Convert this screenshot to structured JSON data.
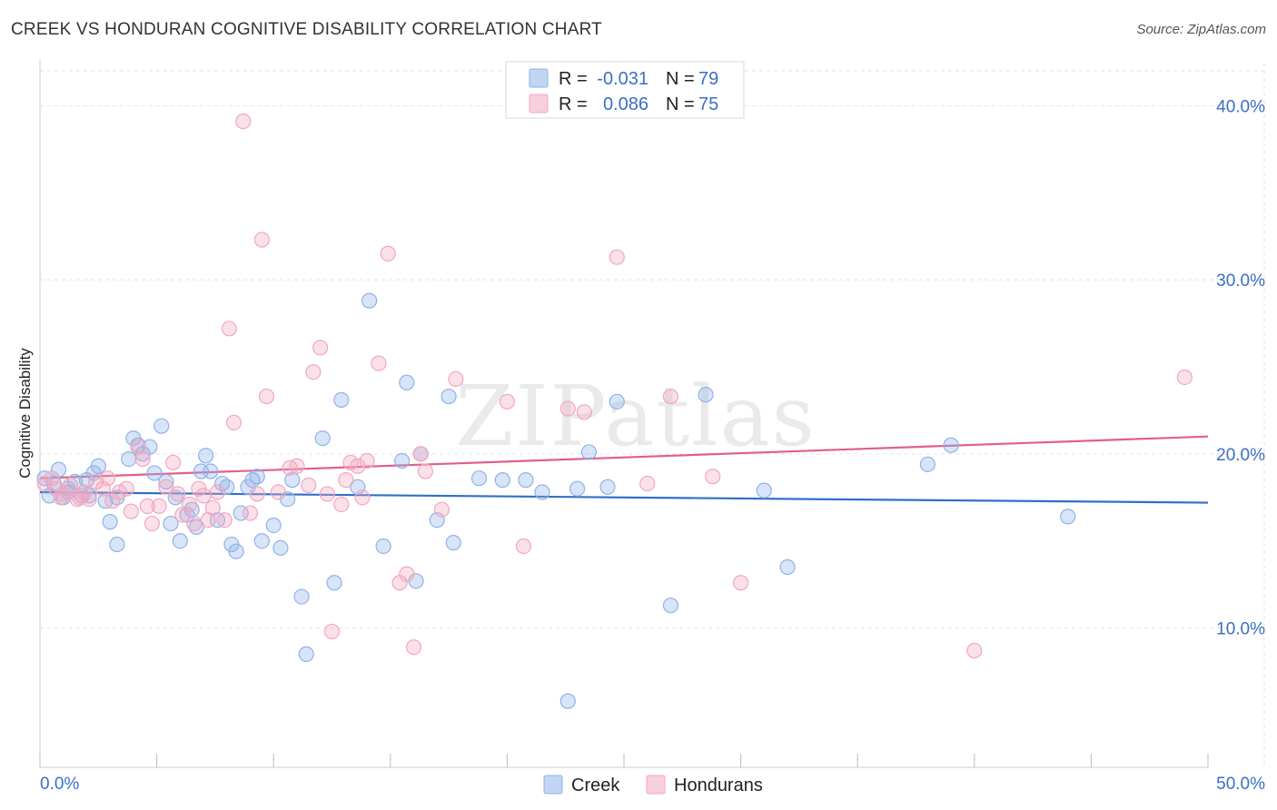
{
  "header": {
    "title": "CREEK VS HONDURAN COGNITIVE DISABILITY CORRELATION CHART",
    "source": "Source: ZipAtlas.com"
  },
  "watermark": "ZIPatlas",
  "chart_data": {
    "type": "scatter",
    "title": "CREEK VS HONDURAN COGNITIVE DISABILITY CORRELATION CHART",
    "ylabel": "Cognitive Disability",
    "xlabel": "",
    "xlim": [
      0,
      50
    ],
    "ylim": [
      2,
      42
    ],
    "x_tick_labels": [
      "0.0%",
      "50.0%"
    ],
    "y_ticks": [
      10,
      20,
      30,
      40
    ],
    "y_tick_labels": [
      "10.0%",
      "20.0%",
      "30.0%",
      "40.0%"
    ],
    "grid": true,
    "legend_position": "top-center",
    "series": [
      {
        "name": "Creek",
        "color": "#8fb3e8",
        "line_color": "#2f6fc8",
        "r_label": "R =",
        "r_value": "-0.031",
        "n_label": "N =",
        "n_value": "79",
        "trend": [
          [
            0,
            17.8
          ],
          [
            50,
            17.2
          ]
        ],
        "points": [
          [
            0.2,
            18.6
          ],
          [
            0.4,
            17.6
          ],
          [
            0.6,
            18.3
          ],
          [
            0.8,
            19.1
          ],
          [
            1.0,
            17.5
          ],
          [
            1.2,
            18.0
          ],
          [
            1.5,
            18.4
          ],
          [
            1.8,
            17.6
          ],
          [
            2.0,
            18.5
          ],
          [
            2.3,
            18.9
          ],
          [
            2.5,
            19.3
          ],
          [
            2.8,
            17.3
          ],
          [
            3.3,
            17.5
          ],
          [
            3.8,
            19.7
          ],
          [
            4.0,
            20.9
          ],
          [
            4.2,
            20.5
          ],
          [
            4.4,
            20.0
          ],
          [
            4.7,
            20.4
          ],
          [
            4.9,
            18.9
          ],
          [
            5.2,
            21.6
          ],
          [
            5.4,
            18.4
          ],
          [
            5.6,
            16.0
          ],
          [
            5.8,
            17.5
          ],
          [
            6.0,
            15.0
          ],
          [
            6.3,
            16.5
          ],
          [
            6.5,
            16.8
          ],
          [
            6.7,
            15.8
          ],
          [
            6.9,
            19.0
          ],
          [
            7.1,
            19.9
          ],
          [
            7.3,
            19.0
          ],
          [
            7.6,
            16.2
          ],
          [
            7.8,
            18.3
          ],
          [
            8.0,
            18.1
          ],
          [
            8.2,
            14.8
          ],
          [
            8.4,
            14.4
          ],
          [
            8.6,
            16.6
          ],
          [
            8.9,
            18.1
          ],
          [
            9.1,
            18.5
          ],
          [
            9.3,
            18.7
          ],
          [
            9.5,
            15.0
          ],
          [
            10.0,
            15.9
          ],
          [
            10.3,
            14.6
          ],
          [
            10.6,
            17.4
          ],
          [
            10.8,
            18.5
          ],
          [
            11.2,
            11.8
          ],
          [
            11.4,
            8.5
          ],
          [
            12.1,
            20.9
          ],
          [
            12.6,
            12.6
          ],
          [
            12.9,
            23.1
          ],
          [
            13.6,
            18.1
          ],
          [
            14.1,
            28.8
          ],
          [
            14.7,
            14.7
          ],
          [
            15.5,
            19.6
          ],
          [
            15.7,
            24.1
          ],
          [
            16.1,
            12.7
          ],
          [
            16.3,
            20.0
          ],
          [
            17.0,
            16.2
          ],
          [
            17.5,
            23.3
          ],
          [
            17.7,
            14.9
          ],
          [
            18.8,
            18.6
          ],
          [
            19.8,
            18.5
          ],
          [
            20.8,
            18.5
          ],
          [
            21.5,
            17.8
          ],
          [
            22.6,
            5.8
          ],
          [
            23.0,
            18.0
          ],
          [
            23.5,
            20.1
          ],
          [
            24.3,
            18.1
          ],
          [
            24.7,
            23.0
          ],
          [
            27.0,
            11.3
          ],
          [
            28.5,
            23.4
          ],
          [
            31.0,
            17.9
          ],
          [
            32.0,
            13.5
          ],
          [
            38.0,
            19.4
          ],
          [
            39.0,
            20.5
          ],
          [
            44.0,
            16.4
          ],
          [
            1.2,
            17.8
          ],
          [
            2.1,
            17.6
          ],
          [
            3.0,
            16.1
          ],
          [
            3.3,
            14.8
          ]
        ]
      },
      {
        "name": "Hondurans",
        "color": "#f2a7bf",
        "line_color": "#e0608a",
        "r_label": "R =",
        "r_value": "0.086",
        "n_label": "N =",
        "n_value": "75",
        "trend": [
          [
            0,
            18.6
          ],
          [
            50,
            21.0
          ]
        ],
        "points": [
          [
            0.2,
            18.3
          ],
          [
            0.5,
            18.6
          ],
          [
            0.7,
            18.0
          ],
          [
            1.0,
            17.7
          ],
          [
            1.3,
            18.2
          ],
          [
            1.6,
            17.4
          ],
          [
            1.9,
            17.8
          ],
          [
            2.1,
            17.4
          ],
          [
            2.4,
            18.4
          ],
          [
            2.7,
            18.0
          ],
          [
            2.9,
            18.6
          ],
          [
            3.1,
            17.3
          ],
          [
            3.4,
            17.8
          ],
          [
            3.7,
            18.0
          ],
          [
            3.9,
            16.7
          ],
          [
            4.2,
            20.4
          ],
          [
            4.4,
            19.7
          ],
          [
            4.6,
            17.0
          ],
          [
            4.8,
            16.0
          ],
          [
            5.1,
            17.0
          ],
          [
            5.4,
            18.1
          ],
          [
            5.7,
            19.5
          ],
          [
            5.9,
            17.7
          ],
          [
            6.1,
            16.5
          ],
          [
            6.4,
            17.1
          ],
          [
            6.6,
            16.0
          ],
          [
            6.8,
            18.0
          ],
          [
            7.0,
            17.6
          ],
          [
            7.2,
            16.2
          ],
          [
            7.4,
            16.9
          ],
          [
            7.6,
            17.8
          ],
          [
            7.9,
            16.2
          ],
          [
            8.1,
            27.2
          ],
          [
            8.3,
            21.8
          ],
          [
            8.7,
            39.1
          ],
          [
            9.0,
            16.6
          ],
          [
            9.3,
            17.7
          ],
          [
            9.5,
            32.3
          ],
          [
            9.7,
            23.3
          ],
          [
            10.2,
            17.8
          ],
          [
            10.7,
            19.2
          ],
          [
            11.0,
            19.3
          ],
          [
            11.5,
            18.2
          ],
          [
            11.7,
            24.7
          ],
          [
            12.0,
            26.1
          ],
          [
            12.3,
            17.7
          ],
          [
            12.5,
            9.8
          ],
          [
            12.9,
            17.1
          ],
          [
            13.1,
            18.5
          ],
          [
            13.3,
            19.5
          ],
          [
            13.6,
            19.3
          ],
          [
            13.8,
            17.5
          ],
          [
            14.0,
            19.6
          ],
          [
            14.5,
            25.2
          ],
          [
            14.9,
            31.5
          ],
          [
            15.4,
            12.6
          ],
          [
            15.7,
            13.1
          ],
          [
            16.0,
            8.9
          ],
          [
            16.3,
            20.0
          ],
          [
            16.5,
            19.0
          ],
          [
            17.2,
            16.8
          ],
          [
            17.8,
            24.3
          ],
          [
            20.0,
            23.0
          ],
          [
            20.7,
            14.7
          ],
          [
            22.6,
            22.6
          ],
          [
            23.3,
            22.4
          ],
          [
            24.7,
            31.3
          ],
          [
            26.0,
            18.3
          ],
          [
            27.0,
            23.3
          ],
          [
            28.8,
            18.7
          ],
          [
            30.0,
            12.6
          ],
          [
            40.0,
            8.7
          ],
          [
            49.0,
            24.4
          ],
          [
            0.9,
            17.5
          ],
          [
            1.7,
            17.5
          ]
        ]
      }
    ]
  }
}
